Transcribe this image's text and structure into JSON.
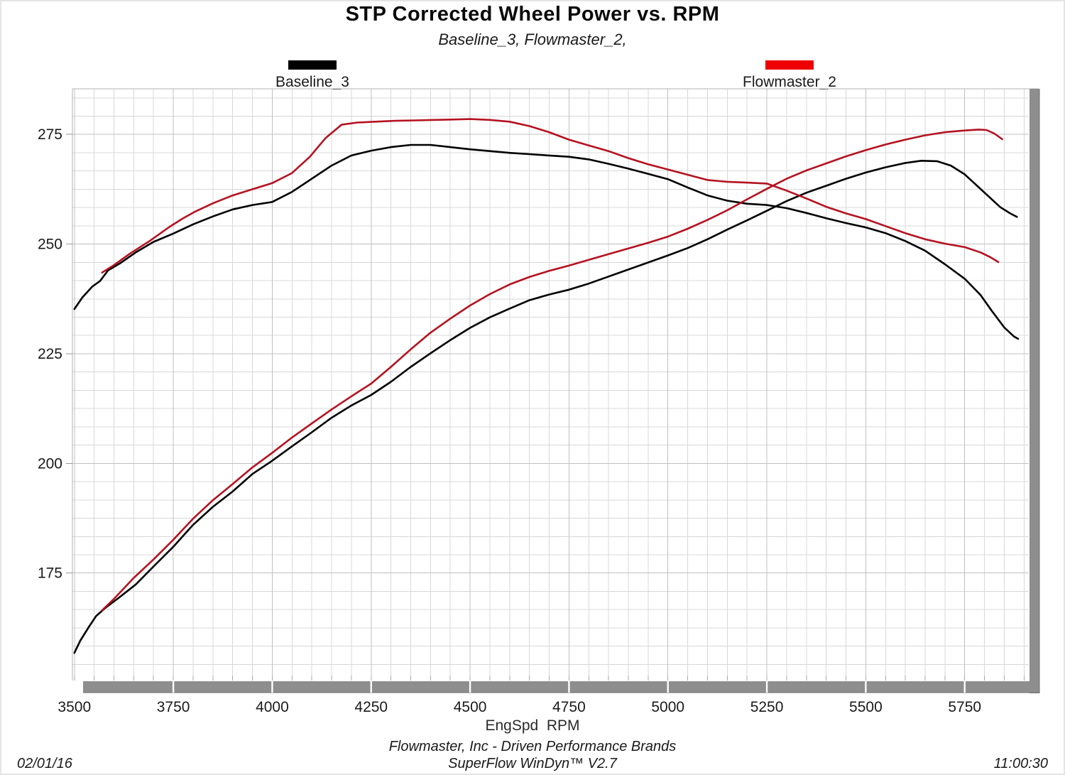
{
  "header": {
    "title": "STP Corrected Wheel Power vs. RPM",
    "subtitle": "Baseline_3, Flowmaster_2,"
  },
  "legend": [
    {
      "label": "Baseline_3",
      "color": "#000000"
    },
    {
      "label": "Flowmaster_2",
      "color": "#ee0000"
    }
  ],
  "footer": {
    "company_line": "Flowmaster, Inc - Driven Performance Brands",
    "software_line": "SuperFlow WinDyn™ V2.7",
    "date": "02/01/16",
    "time": "11:00:30"
  },
  "chart_data": {
    "type": "line",
    "title": "STP Corrected Wheel Power vs. RPM",
    "subtitle": "Baseline_3, Flowmaster_2,",
    "xlabel": "EngSpd  RPM",
    "ylabel": "",
    "xlim": [
      3495,
      5912
    ],
    "ylim": [
      150.5,
      285.4
    ],
    "x_ticks": [
      3500,
      3750,
      4000,
      4250,
      4500,
      4750,
      5000,
      5250,
      5500,
      5750
    ],
    "y_ticks": [
      175,
      200,
      225,
      250,
      275
    ],
    "grid": "minor and major gridlines on",
    "legend_position": "top",
    "colors": {
      "baseline": "#000000",
      "flowmaster": "#b51220",
      "legend_red": "#ee0000",
      "grid_minor": "#d8d8d8",
      "grid_major": "#c0c0c0",
      "axis_bar": "#8e8e8e"
    },
    "series": [
      {
        "name": "Baseline_3 — upper (torque-shaped) trace",
        "run": "Baseline_3",
        "color": "#000000",
        "points": [
          [
            3500,
            235.2
          ],
          [
            3520,
            237.8
          ],
          [
            3545,
            240.3
          ],
          [
            3565,
            241.6
          ],
          [
            3585,
            244.0
          ],
          [
            3615,
            245.6
          ],
          [
            3655,
            248.1
          ],
          [
            3700,
            250.5
          ],
          [
            3750,
            252.4
          ],
          [
            3800,
            254.5
          ],
          [
            3850,
            256.3
          ],
          [
            3900,
            257.9
          ],
          [
            3950,
            258.9
          ],
          [
            4000,
            259.6
          ],
          [
            4050,
            261.9
          ],
          [
            4100,
            264.9
          ],
          [
            4150,
            267.9
          ],
          [
            4200,
            270.2
          ],
          [
            4250,
            271.3
          ],
          [
            4300,
            272.1
          ],
          [
            4350,
            272.6
          ],
          [
            4400,
            272.6
          ],
          [
            4450,
            272.1
          ],
          [
            4500,
            271.6
          ],
          [
            4550,
            271.2
          ],
          [
            4600,
            270.8
          ],
          [
            4650,
            270.5
          ],
          [
            4700,
            270.2
          ],
          [
            4750,
            269.9
          ],
          [
            4800,
            269.3
          ],
          [
            4850,
            268.3
          ],
          [
            4900,
            267.2
          ],
          [
            4950,
            266.0
          ],
          [
            5000,
            264.8
          ],
          [
            5050,
            262.9
          ],
          [
            5100,
            261.1
          ],
          [
            5150,
            259.9
          ],
          [
            5200,
            259.2
          ],
          [
            5250,
            258.9
          ],
          [
            5300,
            258.2
          ],
          [
            5350,
            257.1
          ],
          [
            5400,
            255.9
          ],
          [
            5450,
            254.8
          ],
          [
            5500,
            253.8
          ],
          [
            5550,
            252.5
          ],
          [
            5600,
            250.7
          ],
          [
            5650,
            248.5
          ],
          [
            5700,
            245.4
          ],
          [
            5750,
            242.1
          ],
          [
            5790,
            238.4
          ],
          [
            5820,
            234.6
          ],
          [
            5850,
            231.0
          ],
          [
            5875,
            228.9
          ],
          [
            5885,
            228.4
          ]
        ]
      },
      {
        "name": "Baseline_3 — rising (power) trace, peak ≈269 @ ~5640",
        "run": "Baseline_3",
        "color": "#000000",
        "points": [
          [
            3500,
            156.8
          ],
          [
            3515,
            159.6
          ],
          [
            3535,
            162.5
          ],
          [
            3555,
            165.2
          ],
          [
            3580,
            167.2
          ],
          [
            3610,
            169.2
          ],
          [
            3655,
            172.4
          ],
          [
            3700,
            176.5
          ],
          [
            3750,
            181.0
          ],
          [
            3800,
            186.0
          ],
          [
            3850,
            190.1
          ],
          [
            3900,
            193.6
          ],
          [
            3950,
            197.6
          ],
          [
            4000,
            200.6
          ],
          [
            4050,
            203.9
          ],
          [
            4100,
            207.1
          ],
          [
            4150,
            210.4
          ],
          [
            4200,
            213.2
          ],
          [
            4250,
            215.6
          ],
          [
            4300,
            218.6
          ],
          [
            4350,
            222.0
          ],
          [
            4400,
            225.1
          ],
          [
            4450,
            228.1
          ],
          [
            4500,
            230.9
          ],
          [
            4550,
            233.3
          ],
          [
            4600,
            235.3
          ],
          [
            4650,
            237.2
          ],
          [
            4700,
            238.5
          ],
          [
            4750,
            239.6
          ],
          [
            4800,
            241.0
          ],
          [
            4850,
            242.6
          ],
          [
            4900,
            244.2
          ],
          [
            4950,
            245.8
          ],
          [
            5000,
            247.4
          ],
          [
            5050,
            249.1
          ],
          [
            5100,
            251.1
          ],
          [
            5150,
            253.3
          ],
          [
            5200,
            255.4
          ],
          [
            5250,
            257.6
          ],
          [
            5300,
            259.8
          ],
          [
            5350,
            261.7
          ],
          [
            5400,
            263.3
          ],
          [
            5450,
            264.9
          ],
          [
            5500,
            266.3
          ],
          [
            5550,
            267.5
          ],
          [
            5600,
            268.5
          ],
          [
            5640,
            269.0
          ],
          [
            5680,
            268.9
          ],
          [
            5715,
            267.9
          ],
          [
            5750,
            265.9
          ],
          [
            5780,
            263.4
          ],
          [
            5810,
            260.9
          ],
          [
            5840,
            258.4
          ],
          [
            5865,
            257.0
          ],
          [
            5882,
            256.2
          ]
        ]
      },
      {
        "name": "Flowmaster_2 — upper (torque-shaped) trace, peak ≈278.5 @ ~4500",
        "run": "Flowmaster_2",
        "color": "#b51220",
        "points": [
          [
            3570,
            243.5
          ],
          [
            3600,
            245.2
          ],
          [
            3640,
            247.8
          ],
          [
            3690,
            250.7
          ],
          [
            3740,
            253.9
          ],
          [
            3775,
            255.9
          ],
          [
            3805,
            257.4
          ],
          [
            3850,
            259.3
          ],
          [
            3900,
            261.1
          ],
          [
            3950,
            262.5
          ],
          [
            4000,
            263.9
          ],
          [
            4050,
            266.2
          ],
          [
            4095,
            269.9
          ],
          [
            4135,
            274.2
          ],
          [
            4175,
            277.2
          ],
          [
            4215,
            277.7
          ],
          [
            4260,
            277.9
          ],
          [
            4310,
            278.1
          ],
          [
            4360,
            278.2
          ],
          [
            4410,
            278.3
          ],
          [
            4460,
            278.4
          ],
          [
            4500,
            278.5
          ],
          [
            4550,
            278.3
          ],
          [
            4600,
            277.9
          ],
          [
            4650,
            276.9
          ],
          [
            4700,
            275.5
          ],
          [
            4750,
            273.8
          ],
          [
            4800,
            272.5
          ],
          [
            4850,
            271.2
          ],
          [
            4900,
            269.6
          ],
          [
            4950,
            268.2
          ],
          [
            5000,
            267.0
          ],
          [
            5050,
            265.8
          ],
          [
            5100,
            264.6
          ],
          [
            5150,
            264.2
          ],
          [
            5200,
            264.0
          ],
          [
            5250,
            263.8
          ],
          [
            5300,
            262.2
          ],
          [
            5350,
            260.4
          ],
          [
            5400,
            258.5
          ],
          [
            5450,
            257.0
          ],
          [
            5500,
            255.7
          ],
          [
            5550,
            254.1
          ],
          [
            5600,
            252.5
          ],
          [
            5650,
            251.1
          ],
          [
            5700,
            250.1
          ],
          [
            5750,
            249.3
          ],
          [
            5790,
            248.1
          ],
          [
            5815,
            247.0
          ],
          [
            5835,
            245.9
          ]
        ]
      },
      {
        "name": "Flowmaster_2 — rising (power) trace, peak ≈276 @ ~5790",
        "run": "Flowmaster_2",
        "color": "#b51220",
        "points": [
          [
            3570,
            166.5
          ],
          [
            3600,
            169.1
          ],
          [
            3650,
            173.9
          ],
          [
            3700,
            178.1
          ],
          [
            3750,
            182.6
          ],
          [
            3800,
            187.4
          ],
          [
            3850,
            191.6
          ],
          [
            3900,
            195.3
          ],
          [
            3950,
            199.1
          ],
          [
            4000,
            202.4
          ],
          [
            4050,
            205.9
          ],
          [
            4100,
            209.1
          ],
          [
            4150,
            212.3
          ],
          [
            4200,
            215.3
          ],
          [
            4250,
            218.2
          ],
          [
            4300,
            222.0
          ],
          [
            4350,
            226.0
          ],
          [
            4400,
            229.8
          ],
          [
            4450,
            233.0
          ],
          [
            4500,
            236.0
          ],
          [
            4550,
            238.6
          ],
          [
            4600,
            240.8
          ],
          [
            4650,
            242.5
          ],
          [
            4700,
            243.9
          ],
          [
            4750,
            245.1
          ],
          [
            4800,
            246.4
          ],
          [
            4850,
            247.7
          ],
          [
            4900,
            249.0
          ],
          [
            4950,
            250.3
          ],
          [
            5000,
            251.7
          ],
          [
            5050,
            253.5
          ],
          [
            5100,
            255.5
          ],
          [
            5150,
            257.7
          ],
          [
            5200,
            260.2
          ],
          [
            5250,
            262.6
          ],
          [
            5300,
            264.9
          ],
          [
            5350,
            266.8
          ],
          [
            5400,
            268.4
          ],
          [
            5450,
            270.0
          ],
          [
            5500,
            271.4
          ],
          [
            5550,
            272.7
          ],
          [
            5600,
            273.8
          ],
          [
            5650,
            274.8
          ],
          [
            5700,
            275.5
          ],
          [
            5750,
            275.9
          ],
          [
            5785,
            276.1
          ],
          [
            5805,
            276.0
          ],
          [
            5825,
            275.2
          ],
          [
            5845,
            273.9
          ]
        ]
      }
    ]
  }
}
